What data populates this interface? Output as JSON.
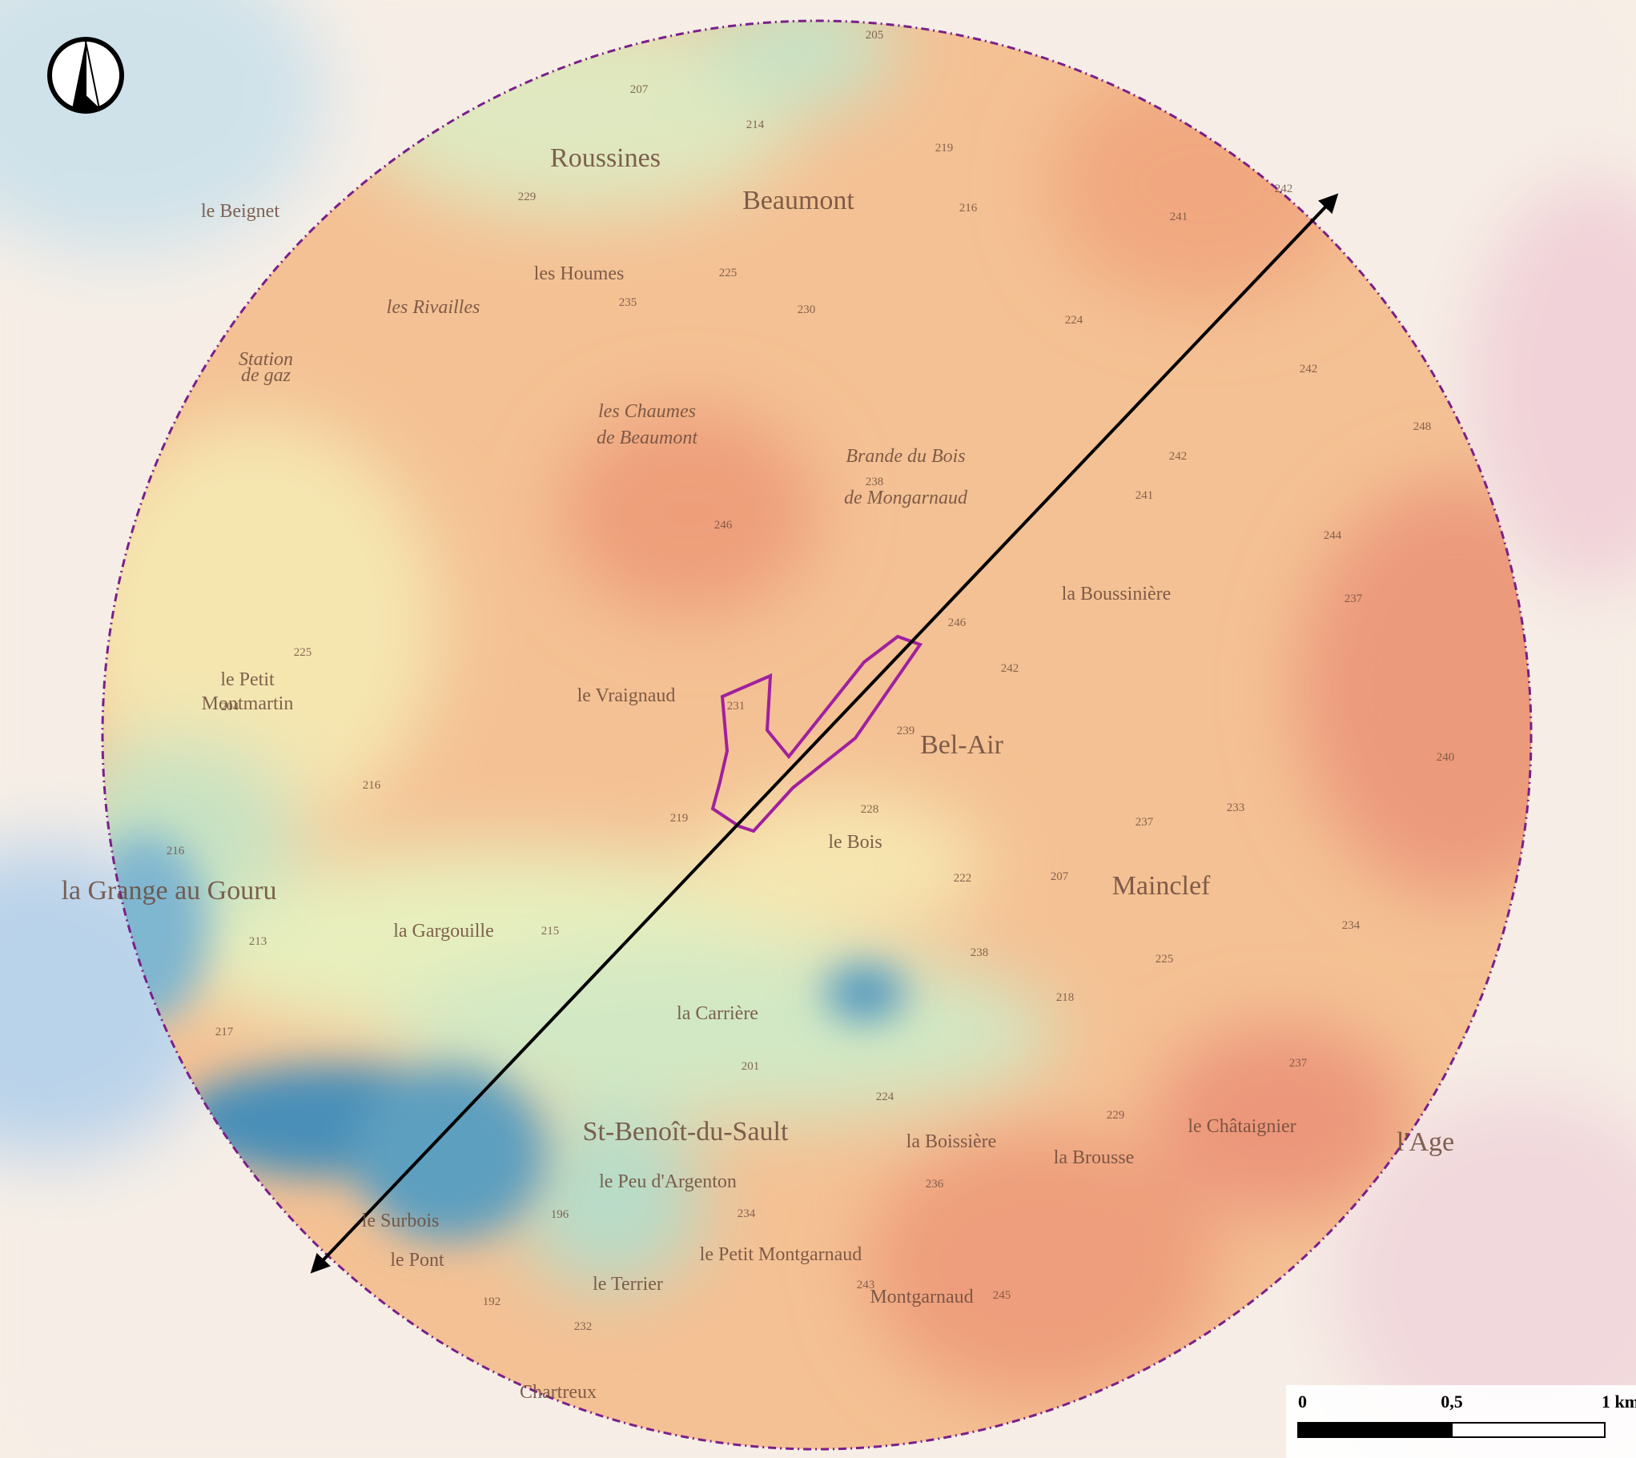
{
  "map": {
    "places": [
      {
        "label": "Roussines"
      },
      {
        "label": "Beaumont"
      },
      {
        "label": "les Houmes"
      },
      {
        "label": "les Rivailles"
      },
      {
        "label": "les Chaumes"
      },
      {
        "label": "de Beaumont"
      },
      {
        "label": "Brande du Bois"
      },
      {
        "label": "de Mongarnaud"
      },
      {
        "label": "la Boussinière"
      },
      {
        "label": "le Petit"
      },
      {
        "label": "Montmartin"
      },
      {
        "label": "le Vraignaud"
      },
      {
        "label": "Bel-Air"
      },
      {
        "label": "le Bois"
      },
      {
        "label": "Mainclef"
      },
      {
        "label": "la Grange au Gouru"
      },
      {
        "label": "la Gargouille"
      },
      {
        "label": "la Carrière"
      },
      {
        "label": "St-Benoît-du-Sault"
      },
      {
        "label": "la Boissière"
      },
      {
        "label": "la Brousse"
      },
      {
        "label": "le Châtaignier"
      },
      {
        "label": "le Peu d'Argenton"
      },
      {
        "label": "le Petit Montgarnaud"
      },
      {
        "label": "Montgarnaud"
      },
      {
        "label": "le Pont"
      },
      {
        "label": "le Terrier"
      },
      {
        "label": "Chartreux"
      },
      {
        "label": "le Beignet"
      },
      {
        "label": "Station"
      },
      {
        "label": "de gaz"
      },
      {
        "label": "le Surbois"
      },
      {
        "label": "l'Age"
      }
    ],
    "heights": [
      "205",
      "207",
      "214",
      "219",
      "216",
      "242",
      "241",
      "229",
      "225",
      "235",
      "230",
      "224",
      "242",
      "248",
      "242",
      "241",
      "238",
      "246",
      "244",
      "237",
      "246",
      "242",
      "239",
      "240",
      "233",
      "237",
      "228",
      "222",
      "207",
      "238",
      "225",
      "234",
      "218",
      "229",
      "237",
      "224",
      "236",
      "234",
      "243",
      "245",
      "232",
      "192",
      "196",
      "201",
      "215",
      "219",
      "231",
      "204",
      "216",
      "213",
      "217",
      "225",
      "216"
    ],
    "scale_bar": {
      "labels": [
        "0",
        "0,5",
        "1 km"
      ]
    }
  }
}
